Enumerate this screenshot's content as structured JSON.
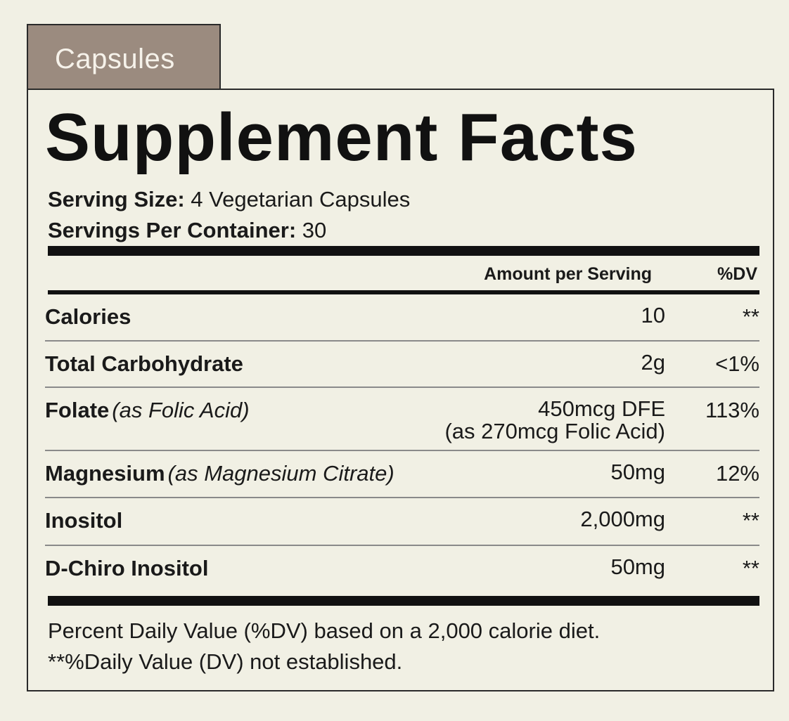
{
  "tab_label": "Capsules",
  "title": "Supplement Facts",
  "serving_size": {
    "label": "Serving Size:",
    "value": " 4 Vegetarian Capsules"
  },
  "servings_per_container": {
    "label": "Servings Per Container:",
    "value": " 30"
  },
  "table": {
    "amount_header": "Amount per Serving",
    "dv_header": "%DV",
    "rows": [
      {
        "name": "Calories",
        "sub": "",
        "amount": "10",
        "amount_extra": "",
        "dv": "**"
      },
      {
        "name": "Total Carbohydrate",
        "sub": "",
        "amount": "2g",
        "amount_extra": "",
        "dv": "<1%"
      },
      {
        "name": "Folate",
        "sub": "(as Folic Acid)",
        "amount": "450mcg DFE",
        "amount_extra": "(as 270mcg Folic Acid)",
        "dv": "113%"
      },
      {
        "name": "Magnesium",
        "sub": "(as Magnesium Citrate)",
        "amount": "50mg",
        "amount_extra": "",
        "dv": "12%"
      },
      {
        "name": "Inositol",
        "sub": "",
        "amount": "2,000mg",
        "amount_extra": "",
        "dv": "**"
      },
      {
        "name": "D-Chiro Inositol",
        "sub": "",
        "amount": "50mg",
        "amount_extra": "",
        "dv": "**"
      }
    ]
  },
  "footnotes": [
    "Percent Daily Value (%DV) based on a 2,000 calorie diet.",
    "**%Daily Value (DV) not established."
  ]
}
